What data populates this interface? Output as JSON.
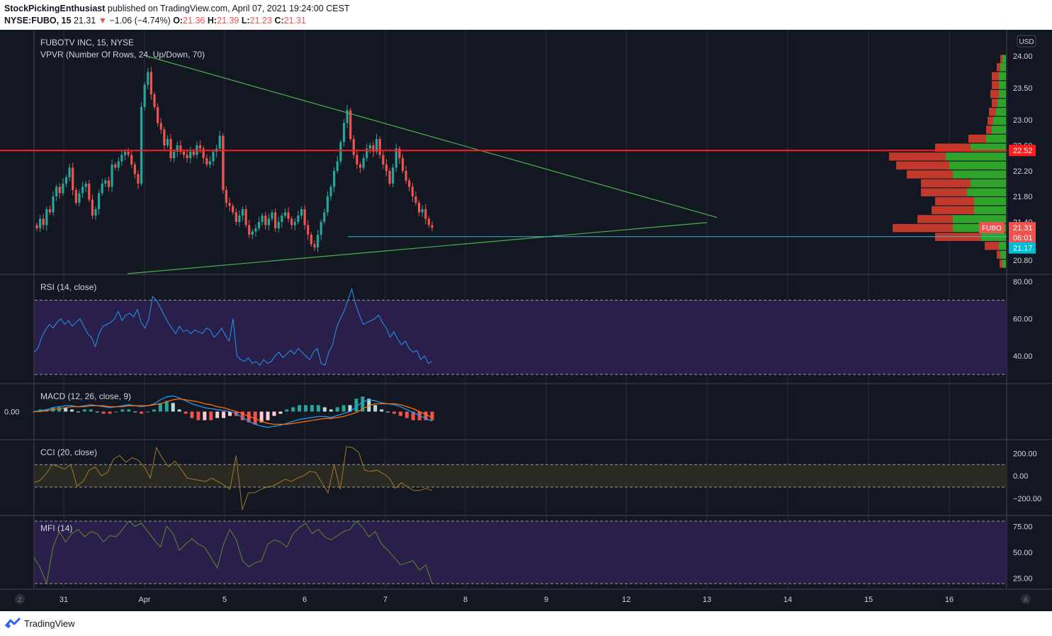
{
  "header": {
    "publisher": "StockPickingEnthusiast",
    "published_text": "published on TradingView.com, April 07, 2021 19:24:00 CEST",
    "symbol": "NYSE:FUBO, 15",
    "last": "21.31",
    "change": "−1.06 (−4.74%)",
    "open_label": "O:",
    "open": "21.36",
    "high_label": "H:",
    "high": "21.39",
    "low_label": "L:",
    "low": "21.23",
    "close_label": "C:",
    "close": "21.31"
  },
  "footer": {
    "brand": "TradingView"
  },
  "colors": {
    "bg": "#131722",
    "grid": "#2a2e39",
    "text": "#d1d4dc",
    "up": "#26a69a",
    "down": "#ef5350",
    "upBody": "#26a69a",
    "trend": "#4caf50",
    "resistance": "#ff1e1e",
    "support": "#3cb4d2",
    "rsi": "#2196f3",
    "rsiBand": "#2a1f4a",
    "macd": "#2196f3",
    "signal": "#ff6d00",
    "cci": "#a0782a",
    "cciBand": "#2b2a22",
    "mfi": "#5c8a2a",
    "mfiBand": "#2a1f4a",
    "vpUp": "#2ea52a",
    "vpDown": "#c0392b"
  },
  "chart_data": [
    {
      "type": "candlestick",
      "title": "FUBOTV INC, 15, NYSE",
      "indicator": "VPVR (Number Of Rows, 24, Up/Down, 70)",
      "currency": "USD",
      "x_ticks": [
        "31",
        "Apr",
        "5",
        "6",
        "7",
        "8",
        "9",
        "12",
        "13",
        "14",
        "15",
        "16"
      ],
      "price_ticks": [
        "24.00",
        "23.50",
        "23.00",
        "22.60",
        "22.20",
        "21.80",
        "21.40",
        "20.80"
      ],
      "ylim": [
        20.8,
        24.0
      ],
      "close_path": [
        21.3,
        21.45,
        21.35,
        21.6,
        21.55,
        21.8,
        21.95,
        21.85,
        22.0,
        22.1,
        22.25,
        21.9,
        21.7,
        21.85,
        21.95,
        22.0,
        21.75,
        21.5,
        21.6,
        21.85,
        22.0,
        22.05,
        21.95,
        22.3,
        22.25,
        22.35,
        22.45,
        22.5,
        22.45,
        22.3,
        22.15,
        22.0,
        23.2,
        23.55,
        23.75,
        23.4,
        23.2,
        22.95,
        22.85,
        22.6,
        22.7,
        22.4,
        22.5,
        22.6,
        22.5,
        22.45,
        22.4,
        22.5,
        22.45,
        22.6,
        22.55,
        22.4,
        22.3,
        22.35,
        22.5,
        22.55,
        22.75,
        21.9,
        21.7,
        21.65,
        21.55,
        21.4,
        21.5,
        21.6,
        21.35,
        21.2,
        21.25,
        21.3,
        21.4,
        21.5,
        21.35,
        21.45,
        21.55,
        21.3,
        21.4,
        21.5,
        21.55,
        21.45,
        21.35,
        21.4,
        21.5,
        21.6,
        21.35,
        21.2,
        21.05,
        21.0,
        21.2,
        21.4,
        21.55,
        21.8,
        21.95,
        22.2,
        22.35,
        22.65,
        22.95,
        23.15,
        22.7,
        22.45,
        22.3,
        22.25,
        22.4,
        22.55,
        22.6,
        22.5,
        22.7,
        22.45,
        22.3,
        22.2,
        22.0,
        22.25,
        22.55,
        22.4,
        22.2,
        22.05,
        21.95,
        21.8,
        21.7,
        21.55,
        21.6,
        21.45,
        21.35,
        21.31
      ],
      "support_line": 21.17,
      "resistance_line": 22.52,
      "last_price_label": "21.31",
      "last_price_ticker": "FUBO",
      "countdown": "06:01",
      "resistance_label": "22.52",
      "support_label": "21.17",
      "volume_profile": [
        {
          "price": 23.95,
          "up": 5,
          "down": 3
        },
        {
          "price": 23.82,
          "up": 8,
          "down": 5
        },
        {
          "price": 23.68,
          "up": 10,
          "down": 10
        },
        {
          "price": 23.54,
          "up": 10,
          "down": 10
        },
        {
          "price": 23.4,
          "up": 10,
          "down": 12
        },
        {
          "price": 23.26,
          "up": 12,
          "down": 8
        },
        {
          "price": 23.12,
          "up": 14,
          "down": 10
        },
        {
          "price": 22.98,
          "up": 18,
          "down": 8
        },
        {
          "price": 22.84,
          "up": 20,
          "down": 8
        },
        {
          "price": 22.7,
          "up": 28,
          "down": 25
        },
        {
          "price": 22.56,
          "up": 50,
          "down": 50
        },
        {
          "price": 22.42,
          "up": 85,
          "down": 80
        },
        {
          "price": 22.28,
          "up": 80,
          "down": 75
        },
        {
          "price": 22.14,
          "up": 75,
          "down": 65
        },
        {
          "price": 22.0,
          "up": 50,
          "down": 70
        },
        {
          "price": 21.86,
          "up": 55,
          "down": 65
        },
        {
          "price": 21.72,
          "up": 45,
          "down": 55
        },
        {
          "price": 21.58,
          "up": 45,
          "down": 60
        },
        {
          "price": 21.44,
          "up": 75,
          "down": 50
        },
        {
          "price": 21.3,
          "up": 75,
          "down": 85
        },
        {
          "price": 21.16,
          "up": 35,
          "down": 65
        },
        {
          "price": 21.02,
          "up": 10,
          "down": 20
        },
        {
          "price": 20.88,
          "up": 8,
          "down": 5
        },
        {
          "price": 20.74,
          "up": 5,
          "down": 4
        }
      ]
    },
    {
      "type": "line",
      "title": "RSI (14, close)",
      "y_ticks": [
        "80.00",
        "60.00",
        "40.00"
      ],
      "ylim": [
        27,
        82
      ],
      "band": [
        30,
        70
      ],
      "values": [
        42,
        44,
        50,
        54,
        57,
        55,
        58,
        60,
        57,
        59,
        56,
        58,
        60,
        56,
        52,
        50,
        45,
        52,
        56,
        57,
        58,
        60,
        64,
        59,
        62,
        63,
        61,
        65,
        58,
        55,
        60,
        72,
        70,
        66,
        62,
        58,
        55,
        52,
        56,
        53,
        54,
        52,
        54,
        53,
        52,
        55,
        54,
        50,
        52,
        55,
        51,
        48,
        60,
        40,
        38,
        37,
        39,
        36,
        37,
        35,
        38,
        36,
        37,
        40,
        42,
        39,
        41,
        43,
        41,
        44,
        42,
        40,
        38,
        42,
        44,
        36,
        35,
        42,
        46,
        55,
        60,
        64,
        70,
        76,
        68,
        62,
        57,
        58,
        59,
        60,
        62,
        58,
        55,
        50,
        53,
        49,
        46,
        48,
        44,
        42,
        43,
        38,
        40,
        36,
        37
      ],
      "thickness": 1
    },
    {
      "type": "macd",
      "title": "MACD (12, 26, close, 9)",
      "y_ticks": [
        "0.00"
      ],
      "ylim": [
        -0.25,
        0.25
      ],
      "macd": [
        0.0,
        0.01,
        0.02,
        0.04,
        0.05,
        0.06,
        0.06,
        0.05,
        0.06,
        0.07,
        0.06,
        0.05,
        0.04,
        0.05,
        0.06,
        0.07,
        0.06,
        0.05,
        0.06,
        0.08,
        0.12,
        0.15,
        0.16,
        0.14,
        0.11,
        0.08,
        0.06,
        0.04,
        0.03,
        0.02,
        0.01,
        0.0,
        -0.02,
        -0.06,
        -0.1,
        -0.13,
        -0.15,
        -0.16,
        -0.15,
        -0.14,
        -0.12,
        -0.1,
        -0.08,
        -0.07,
        -0.06,
        -0.05,
        -0.05,
        -0.06,
        -0.04,
        -0.02,
        0.0,
        0.05,
        0.1,
        0.12,
        0.11,
        0.09,
        0.08,
        0.07,
        0.05,
        0.02,
        -0.01,
        -0.04,
        -0.07,
        -0.1
      ],
      "signal": [
        0.0,
        0.0,
        0.01,
        0.02,
        0.03,
        0.04,
        0.05,
        0.05,
        0.05,
        0.06,
        0.06,
        0.06,
        0.05,
        0.05,
        0.05,
        0.06,
        0.06,
        0.06,
        0.06,
        0.07,
        0.08,
        0.1,
        0.12,
        0.13,
        0.12,
        0.11,
        0.1,
        0.08,
        0.07,
        0.05,
        0.04,
        0.02,
        0.0,
        -0.02,
        -0.05,
        -0.07,
        -0.1,
        -0.12,
        -0.13,
        -0.13,
        -0.13,
        -0.12,
        -0.11,
        -0.1,
        -0.09,
        -0.08,
        -0.07,
        -0.07,
        -0.06,
        -0.05,
        -0.03,
        -0.01,
        0.03,
        0.06,
        0.08,
        0.08,
        0.08,
        0.08,
        0.07,
        0.05,
        0.03,
        0.0,
        -0.03,
        -0.06
      ]
    },
    {
      "type": "line",
      "title": "CCI (20, close)",
      "y_ticks": [
        "200.00",
        "0.00",
        "−200.00"
      ],
      "ylim": [
        -320,
        290
      ],
      "band": [
        -100,
        100
      ],
      "values": [
        -60,
        -40,
        20,
        100,
        80,
        60,
        100,
        -90,
        -50,
        50,
        80,
        0,
        30,
        150,
        180,
        120,
        160,
        140,
        80,
        -20,
        250,
        150,
        80,
        130,
        60,
        -20,
        -30,
        -40,
        -50,
        -20,
        -50,
        -80,
        -120,
        180,
        -300,
        -150,
        -150,
        -120,
        -100,
        -90,
        -60,
        -30,
        -50,
        -20,
        0,
        40,
        30,
        -60,
        -150,
        100,
        -120,
        260,
        250,
        210,
        50,
        40,
        50,
        20,
        -20,
        -110,
        -60,
        -100,
        -130,
        -130,
        -110,
        -130
      ]
    },
    {
      "type": "line",
      "title": "MFI (14)",
      "y_ticks": [
        "75.00",
        "50.00",
        "25.00"
      ],
      "ylim": [
        18,
        82
      ],
      "band": [
        20,
        80
      ],
      "values": [
        45,
        35,
        20,
        55,
        70,
        60,
        68,
        72,
        65,
        70,
        68,
        60,
        66,
        65,
        72,
        80,
        75,
        78,
        70,
        62,
        55,
        75,
        68,
        52,
        58,
        63,
        58,
        55,
        45,
        35,
        58,
        72,
        62,
        42,
        36,
        40,
        42,
        58,
        62,
        60,
        55,
        68,
        74,
        78,
        68,
        72,
        65,
        62,
        66,
        70,
        72,
        80,
        74,
        65,
        70,
        58,
        52,
        45,
        38,
        40,
        42,
        33,
        38,
        20
      ]
    }
  ]
}
